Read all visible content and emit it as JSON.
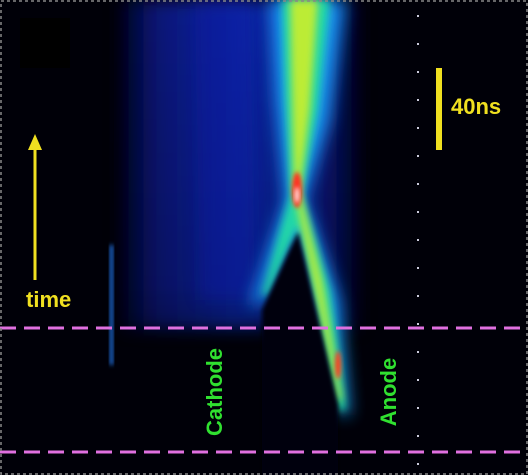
{
  "labels": {
    "scale": "40ns",
    "time": "time",
    "cathode": "Cathode",
    "anode": "Anode"
  }
}
